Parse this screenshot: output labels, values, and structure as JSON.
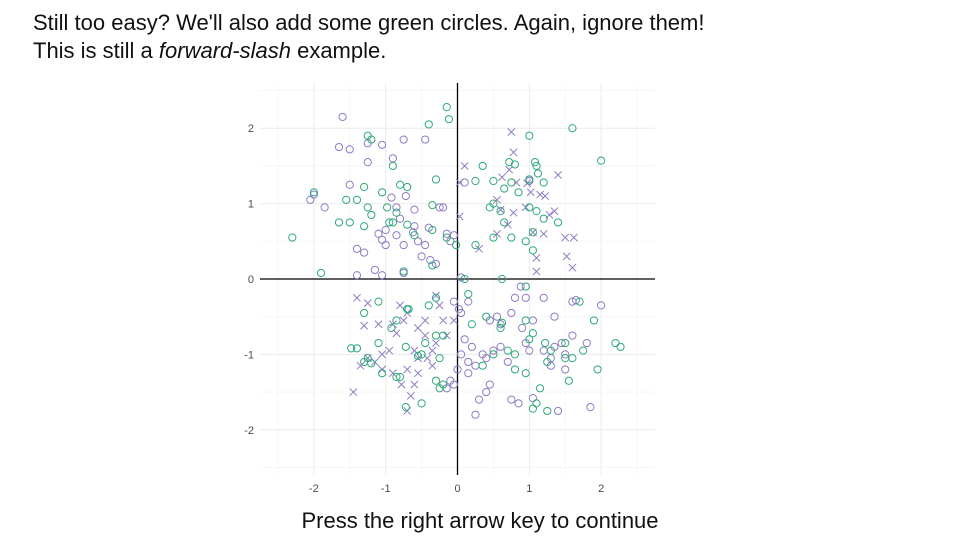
{
  "instructions": {
    "line1": "Still too easy? We'll also add some green circles. Again, ignore them!",
    "line2_before": "This is still a ",
    "line2_emphasis": "forward-slash",
    "line2_after": " example."
  },
  "footer": {
    "prompt": "Press the right arrow key to continue"
  },
  "colors": {
    "purple": "#8e7cc3",
    "green": "#2eaa7a",
    "axis": "#000000",
    "grid_major": "#ebebeb",
    "grid_minor": "#f5f5f5"
  },
  "chart_data": {
    "type": "scatter",
    "title": "",
    "xlabel": "",
    "ylabel": "",
    "xlim": [
      -2.75,
      2.75
    ],
    "ylim": [
      -2.6,
      2.6
    ],
    "x_ticks": [
      -2,
      -1,
      0,
      1,
      2
    ],
    "y_ticks": [
      -2,
      -1,
      0,
      1,
      2
    ],
    "x_tick_labels": [
      "-2",
      "-1",
      "0",
      "1",
      "2"
    ],
    "y_tick_labels": [
      "-2",
      "-1",
      "0",
      "1",
      "2"
    ],
    "grid": true,
    "zero_lines": true,
    "legend": "none",
    "series": [
      {
        "marker": "x",
        "color": "purple",
        "points": [
          [
            0.75,
            1.95
          ],
          [
            0.78,
            1.68
          ],
          [
            0.72,
            1.45
          ],
          [
            0.62,
            1.35
          ],
          [
            0.82,
            1.28
          ],
          [
            1.4,
            1.38
          ],
          [
            1.02,
            1.15
          ],
          [
            0.97,
            1.27
          ],
          [
            0.55,
            1.05
          ],
          [
            0.6,
            0.92
          ],
          [
            0.78,
            0.88
          ],
          [
            0.95,
            0.95
          ],
          [
            1.15,
            1.12
          ],
          [
            1.22,
            1.1
          ],
          [
            1.35,
            0.9
          ],
          [
            1.28,
            0.85
          ],
          [
            1.05,
            0.62
          ],
          [
            1.2,
            0.6
          ],
          [
            0.7,
            0.72
          ],
          [
            0.03,
            0.83
          ],
          [
            0.1,
            1.5
          ],
          [
            0.03,
            1.28
          ],
          [
            1.5,
            0.55
          ],
          [
            1.62,
            0.55
          ],
          [
            1.52,
            0.3
          ],
          [
            1.6,
            0.15
          ],
          [
            1.1,
            0.28
          ],
          [
            1.1,
            0.1
          ],
          [
            0.55,
            0.6
          ],
          [
            0.3,
            0.4
          ],
          [
            -1.4,
            -0.25
          ],
          [
            -1.25,
            -0.32
          ],
          [
            -0.8,
            -0.35
          ],
          [
            -0.7,
            -0.45
          ],
          [
            -0.9,
            -0.6
          ],
          [
            -0.85,
            -0.72
          ],
          [
            -0.55,
            -0.65
          ],
          [
            -0.75,
            -0.55
          ],
          [
            -1.1,
            -0.6
          ],
          [
            -1.3,
            -0.62
          ],
          [
            -0.3,
            -0.22
          ],
          [
            -0.25,
            -0.35
          ],
          [
            -0.2,
            -0.55
          ],
          [
            -0.05,
            -0.55
          ],
          [
            -0.15,
            -0.75
          ],
          [
            -0.45,
            -0.75
          ],
          [
            -0.3,
            -0.85
          ],
          [
            -0.35,
            -0.95
          ],
          [
            -0.42,
            -1.05
          ],
          [
            -0.55,
            -1.05
          ],
          [
            -0.7,
            -1.2
          ],
          [
            -0.55,
            -1.25
          ],
          [
            -0.6,
            -1.4
          ],
          [
            -0.78,
            -1.4
          ],
          [
            -0.9,
            -1.25
          ],
          [
            -1.05,
            -1.2
          ],
          [
            -1.15,
            -1.1
          ],
          [
            -1.25,
            -1.05
          ],
          [
            -1.35,
            -1.15
          ],
          [
            -1.45,
            -1.5
          ],
          [
            -0.95,
            -0.95
          ],
          [
            -1.05,
            -1.0
          ],
          [
            -0.65,
            -1.55
          ],
          [
            -0.7,
            -1.75
          ],
          [
            -0.45,
            -0.55
          ],
          [
            -0.35,
            -1.15
          ],
          [
            -0.6,
            -0.95
          ]
        ]
      },
      {
        "marker": "circle",
        "color": "purple",
        "points": [
          [
            -1.6,
            2.15
          ],
          [
            -1.65,
            1.75
          ],
          [
            -1.5,
            1.72
          ],
          [
            -1.25,
            1.8
          ],
          [
            -1.05,
            1.78
          ],
          [
            -0.75,
            1.85
          ],
          [
            -0.45,
            1.85
          ],
          [
            -0.9,
            1.6
          ],
          [
            -1.25,
            1.55
          ],
          [
            -1.5,
            1.25
          ],
          [
            -2.05,
            1.05
          ],
          [
            -2.0,
            1.12
          ],
          [
            -1.85,
            0.95
          ],
          [
            -0.92,
            1.08
          ],
          [
            -0.72,
            1.1
          ],
          [
            -0.6,
            0.92
          ],
          [
            -0.62,
            0.62
          ],
          [
            -0.85,
            0.58
          ],
          [
            -1.1,
            0.6
          ],
          [
            -1.05,
            0.52
          ],
          [
            -1.0,
            0.45
          ],
          [
            -0.75,
            0.45
          ],
          [
            -0.55,
            0.5
          ],
          [
            -0.4,
            0.68
          ],
          [
            -0.25,
            0.95
          ],
          [
            -0.2,
            0.95
          ],
          [
            -1.4,
            0.4
          ],
          [
            -1.3,
            0.35
          ],
          [
            -1.15,
            0.12
          ],
          [
            -1.05,
            0.05
          ],
          [
            -0.75,
            0.08
          ],
          [
            -0.5,
            0.3
          ],
          [
            -0.38,
            0.25
          ],
          [
            -0.1,
            0.5
          ],
          [
            -0.05,
            0.58
          ],
          [
            -1.4,
            0.05
          ],
          [
            -1.0,
            0.65
          ],
          [
            -0.85,
            0.95
          ],
          [
            -0.8,
            0.8
          ],
          [
            -0.45,
            0.45
          ],
          [
            -0.3,
            0.2
          ],
          [
            -0.15,
            0.6
          ],
          [
            -0.6,
            0.7
          ],
          [
            0.05,
            0.02
          ],
          [
            0.02,
            -0.4
          ],
          [
            0.05,
            -0.45
          ],
          [
            0.15,
            -0.3
          ],
          [
            -0.05,
            -0.3
          ],
          [
            0.45,
            -0.55
          ],
          [
            0.55,
            -0.5
          ],
          [
            0.75,
            -0.45
          ],
          [
            0.6,
            -0.6
          ],
          [
            0.9,
            -0.65
          ],
          [
            1.05,
            -0.55
          ],
          [
            0.95,
            -0.85
          ],
          [
            1.0,
            -0.95
          ],
          [
            1.2,
            -0.95
          ],
          [
            1.35,
            -0.9
          ],
          [
            1.3,
            -1.05
          ],
          [
            1.45,
            -0.85
          ],
          [
            1.5,
            -1.0
          ],
          [
            1.6,
            -0.75
          ],
          [
            1.8,
            -0.85
          ],
          [
            1.6,
            -0.3
          ],
          [
            1.65,
            -0.28
          ],
          [
            2.0,
            -0.35
          ],
          [
            1.2,
            -0.25
          ],
          [
            0.95,
            -0.25
          ],
          [
            0.88,
            -0.1
          ],
          [
            0.6,
            -0.9
          ],
          [
            0.5,
            -0.95
          ],
          [
            0.4,
            -1.05
          ],
          [
            0.2,
            -0.9
          ],
          [
            0.15,
            -1.1
          ],
          [
            0.25,
            -1.15
          ],
          [
            0.35,
            -1.0
          ],
          [
            0.45,
            -1.4
          ],
          [
            0.4,
            -1.5
          ],
          [
            0.3,
            -1.6
          ],
          [
            0.25,
            -1.8
          ],
          [
            0.75,
            -1.6
          ],
          [
            0.85,
            -1.65
          ],
          [
            1.05,
            -1.58
          ],
          [
            1.4,
            -1.75
          ],
          [
            1.85,
            -1.7
          ],
          [
            1.5,
            -1.2
          ],
          [
            1.3,
            -1.15
          ],
          [
            0.7,
            -1.1
          ],
          [
            0.15,
            -1.25
          ],
          [
            0.0,
            -1.2
          ],
          [
            -0.05,
            -1.4
          ],
          [
            -0.1,
            -1.35
          ],
          [
            -0.15,
            -1.45
          ],
          [
            0.05,
            -1.0
          ],
          [
            0.1,
            -0.8
          ],
          [
            0.8,
            -0.25
          ],
          [
            1.0,
            1.3
          ],
          [
            1.0,
            1.32
          ],
          [
            0.1,
            1.28
          ],
          [
            1.35,
            -0.5
          ]
        ]
      },
      {
        "marker": "circle",
        "color": "green",
        "points": [
          [
            -0.15,
            2.28
          ],
          [
            -0.12,
            2.12
          ],
          [
            -0.4,
            2.05
          ],
          [
            -1.25,
            1.9
          ],
          [
            -1.2,
            1.85
          ],
          [
            -0.9,
            1.5
          ],
          [
            -0.3,
            1.32
          ],
          [
            -0.8,
            1.25
          ],
          [
            -1.3,
            1.22
          ],
          [
            -0.7,
            1.22
          ],
          [
            -1.05,
            1.15
          ],
          [
            -1.4,
            1.05
          ],
          [
            -1.55,
            1.05
          ],
          [
            -2.0,
            1.15
          ],
          [
            -0.98,
            0.95
          ],
          [
            -0.35,
            0.98
          ],
          [
            -1.25,
            0.95
          ],
          [
            -0.85,
            0.88
          ],
          [
            -1.5,
            0.75
          ],
          [
            -1.65,
            0.75
          ],
          [
            -1.3,
            0.7
          ],
          [
            -0.95,
            0.75
          ],
          [
            -0.7,
            0.72
          ],
          [
            -0.6,
            0.58
          ],
          [
            -0.35,
            0.65
          ],
          [
            -0.15,
            0.55
          ],
          [
            -0.02,
            0.45
          ],
          [
            -2.3,
            0.55
          ],
          [
            -1.9,
            0.08
          ],
          [
            -0.75,
            0.1
          ],
          [
            -0.35,
            0.18
          ],
          [
            -1.2,
            0.85
          ],
          [
            -0.9,
            0.75
          ],
          [
            0.25,
            1.3
          ],
          [
            0.35,
            1.5
          ],
          [
            0.5,
            1.3
          ],
          [
            0.72,
            1.55
          ],
          [
            0.8,
            1.52
          ],
          [
            0.75,
            1.28
          ],
          [
            0.65,
            1.2
          ],
          [
            0.85,
            1.15
          ],
          [
            1.0,
            1.9
          ],
          [
            1.08,
            1.55
          ],
          [
            1.1,
            1.5
          ],
          [
            1.12,
            1.4
          ],
          [
            1.2,
            1.28
          ],
          [
            1.0,
            1.32
          ],
          [
            1.6,
            2.0
          ],
          [
            2.0,
            1.57
          ],
          [
            0.5,
            1.0
          ],
          [
            0.45,
            0.95
          ],
          [
            0.6,
            0.9
          ],
          [
            0.65,
            0.75
          ],
          [
            1.0,
            0.95
          ],
          [
            1.1,
            0.9
          ],
          [
            1.2,
            0.8
          ],
          [
            0.5,
            0.55
          ],
          [
            0.75,
            0.55
          ],
          [
            0.95,
            0.5
          ],
          [
            1.05,
            0.62
          ],
          [
            1.4,
            0.75
          ],
          [
            1.05,
            0.38
          ],
          [
            0.62,
            0.0
          ],
          [
            0.1,
            0.0
          ],
          [
            0.25,
            0.45
          ],
          [
            -0.3,
            -0.25
          ],
          [
            -0.4,
            -0.35
          ],
          [
            -0.7,
            -0.4
          ],
          [
            -1.1,
            -0.3
          ],
          [
            -1.3,
            -0.45
          ],
          [
            -0.85,
            -0.55
          ],
          [
            -0.92,
            -0.65
          ],
          [
            -0.2,
            -0.75
          ],
          [
            -0.3,
            -0.75
          ],
          [
            -0.45,
            -0.85
          ],
          [
            -0.5,
            -1.0
          ],
          [
            -0.25,
            -1.05
          ],
          [
            -0.3,
            -1.35
          ],
          [
            -0.2,
            -1.4
          ],
          [
            -0.25,
            -1.45
          ],
          [
            -0.5,
            -1.65
          ],
          [
            -0.72,
            -1.7
          ],
          [
            -0.8,
            -1.3
          ],
          [
            -0.85,
            -1.3
          ],
          [
            -1.05,
            -1.25
          ],
          [
            -1.2,
            -1.12
          ],
          [
            -1.3,
            -1.1
          ],
          [
            -1.4,
            -0.92
          ],
          [
            -1.48,
            -0.92
          ],
          [
            -1.25,
            -1.05
          ],
          [
            -1.1,
            -0.85
          ],
          [
            -0.72,
            -0.9
          ],
          [
            -0.55,
            -1.02
          ],
          [
            -0.68,
            -0.4
          ],
          [
            0.15,
            -0.2
          ],
          [
            0.4,
            -0.5
          ],
          [
            0.6,
            -0.65
          ],
          [
            0.62,
            -0.58
          ],
          [
            0.95,
            -0.55
          ],
          [
            1.05,
            -0.72
          ],
          [
            1.0,
            -0.8
          ],
          [
            1.22,
            -0.85
          ],
          [
            1.3,
            -0.95
          ],
          [
            1.5,
            -1.05
          ],
          [
            1.5,
            -0.85
          ],
          [
            1.6,
            -1.05
          ],
          [
            1.75,
            -0.95
          ],
          [
            1.9,
            -0.55
          ],
          [
            2.2,
            -0.85
          ],
          [
            2.27,
            -0.9
          ],
          [
            1.95,
            -1.2
          ],
          [
            1.55,
            -1.35
          ],
          [
            1.15,
            -1.45
          ],
          [
            1.1,
            -1.65
          ],
          [
            1.05,
            -1.72
          ],
          [
            1.25,
            -1.75
          ],
          [
            0.95,
            -1.25
          ],
          [
            0.8,
            -1.2
          ],
          [
            0.7,
            -0.95
          ],
          [
            0.35,
            -1.15
          ],
          [
            0.5,
            -1.0
          ],
          [
            0.8,
            -1.0
          ],
          [
            1.25,
            -1.1
          ],
          [
            0.95,
            -0.1
          ],
          [
            1.7,
            -0.3
          ],
          [
            0.2,
            -0.6
          ]
        ]
      }
    ]
  }
}
